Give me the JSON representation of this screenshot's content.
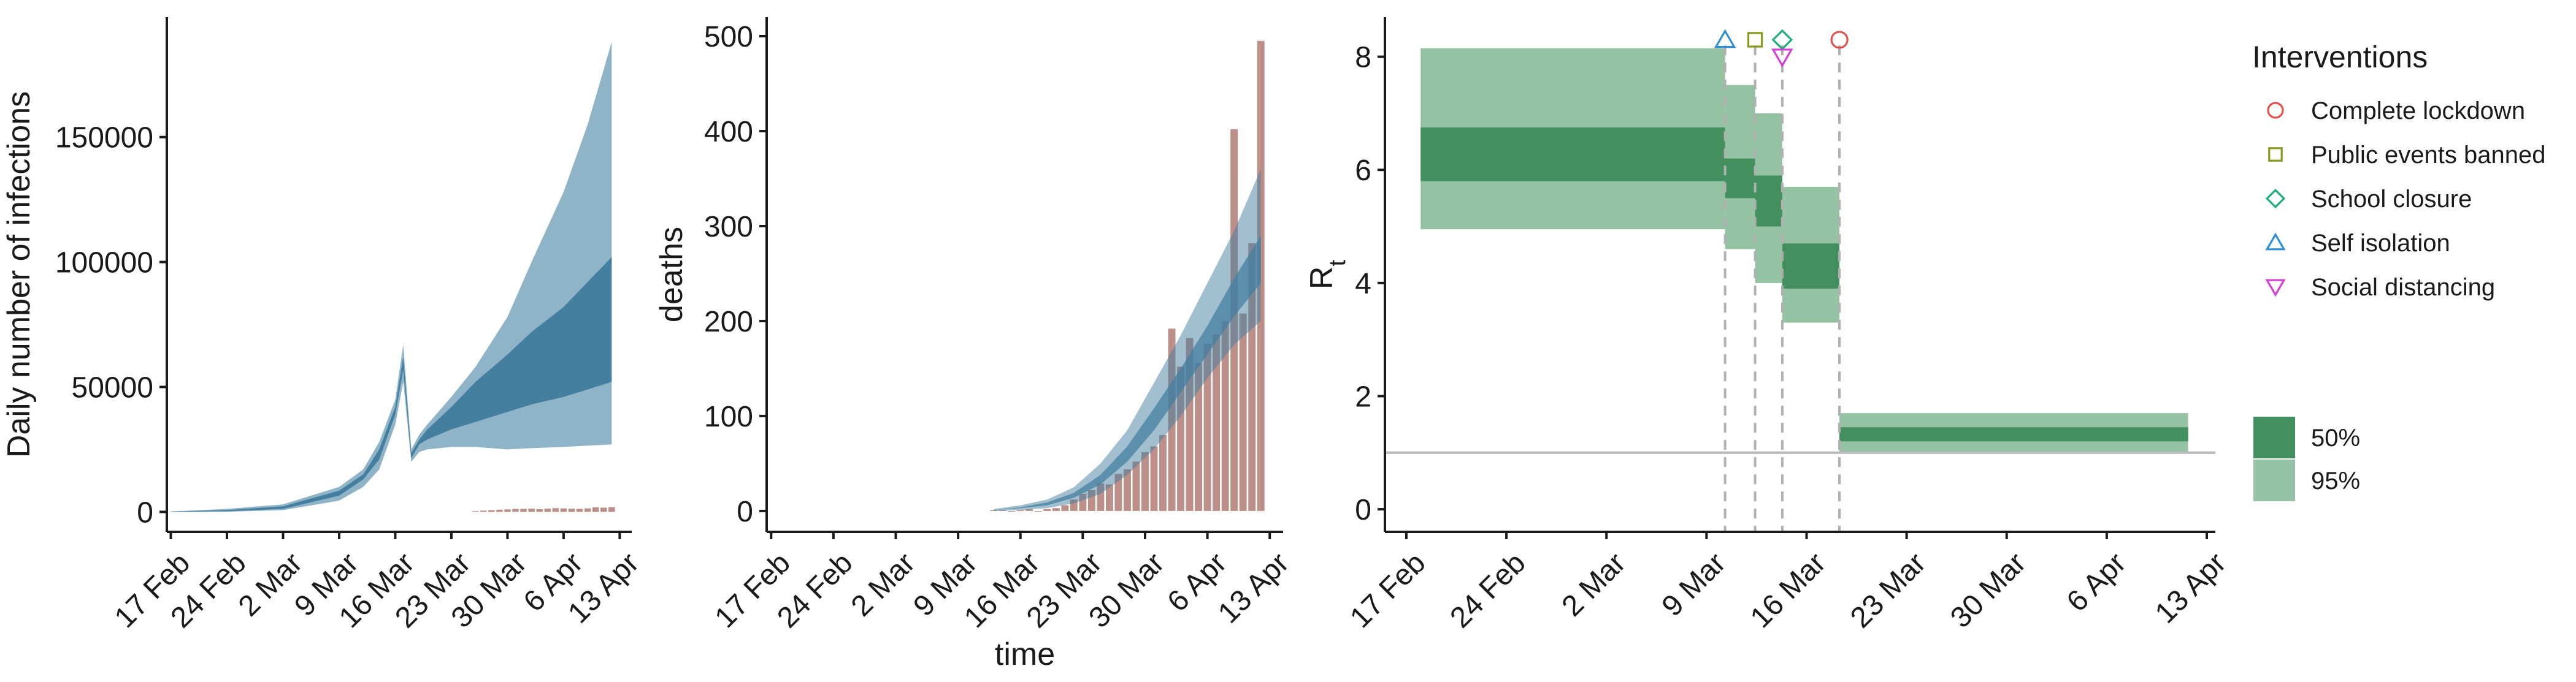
{
  "colors": {
    "band95_blue": "#8fb3c7",
    "band50_blue": "#447fa0",
    "bar_fill": "#bc8f89",
    "band95_green": "#94c2a2",
    "band50_green": "#438f5e",
    "axis": "#1a1a1a",
    "hline": "#b8b8b8",
    "vline": "#b0b0b0"
  },
  "chart_data": [
    {
      "type": "area",
      "ylabel": "Daily number of infections",
      "xlabel": "",
      "x_tick_labels": [
        "17 Feb",
        "24 Feb",
        "2 Mar",
        "9 Mar",
        "16 Mar",
        "23 Mar",
        "30 Mar",
        "6 Apr",
        "13 Apr"
      ],
      "x_tick_days": [
        0,
        7,
        14,
        21,
        28,
        35,
        42,
        49,
        56
      ],
      "y_ticks": [
        0,
        50000,
        100000,
        150000
      ],
      "xlim": [
        -0.5,
        57.5
      ],
      "ylim": [
        -8000,
        198000
      ],
      "band95": {
        "x": [
          0,
          7,
          14,
          21,
          24,
          26,
          28,
          29,
          30,
          31,
          32,
          35,
          38,
          42,
          45,
          49,
          52,
          55
        ],
        "lower": [
          0,
          50,
          700,
          4500,
          10000,
          17000,
          35000,
          52000,
          20000,
          24000,
          25000,
          26000,
          26000,
          25000,
          25500,
          26000,
          26500,
          27000
        ],
        "upper": [
          200,
          1200,
          3000,
          10000,
          17000,
          28000,
          45000,
          67000,
          25000,
          31000,
          35000,
          46000,
          58000,
          78000,
          100000,
          128000,
          155000,
          188000
        ]
      },
      "band50": {
        "x": [
          0,
          7,
          14,
          21,
          24,
          26,
          28,
          29,
          30,
          31,
          32,
          35,
          38,
          42,
          45,
          49,
          52,
          55
        ],
        "lower": [
          50,
          250,
          1200,
          6500,
          13000,
          21000,
          39000,
          57000,
          21500,
          27000,
          29000,
          33000,
          36000,
          40000,
          43000,
          46000,
          49000,
          52000
        ],
        "upper": [
          120,
          700,
          2200,
          8500,
          15000,
          25000,
          42000,
          62000,
          23500,
          29000,
          33000,
          42000,
          52000,
          63000,
          72000,
          82000,
          92000,
          102000
        ]
      },
      "bars": {
        "x": [
          38,
          39,
          40,
          41,
          42,
          43,
          44,
          45,
          46,
          47,
          48,
          49,
          50,
          51,
          52,
          53,
          54,
          55
        ],
        "values": [
          300,
          500,
          700,
          900,
          1000,
          1200,
          1200,
          1300,
          1100,
          1300,
          1500,
          1400,
          1300,
          1200,
          1400,
          1800,
          1700,
          1900
        ]
      }
    },
    {
      "type": "bar",
      "ylabel": "deaths",
      "xlabel": "time",
      "x_tick_labels": [
        "17 Feb",
        "24 Feb",
        "2 Mar",
        "9 Mar",
        "16 Mar",
        "23 Mar",
        "30 Mar",
        "6 Apr",
        "13 Apr"
      ],
      "x_tick_days": [
        0,
        7,
        14,
        21,
        28,
        35,
        42,
        49,
        56
      ],
      "y_ticks": [
        0,
        100,
        200,
        300,
        400,
        500
      ],
      "xlim": [
        -0.5,
        57.5
      ],
      "ylim": [
        -22,
        520
      ],
      "bars": {
        "x": [
          25,
          26,
          27,
          28,
          29,
          30,
          31,
          32,
          33,
          34,
          35,
          36,
          37,
          38,
          39,
          40,
          41,
          42,
          43,
          44,
          45,
          46,
          47,
          48,
          49,
          50,
          51,
          52,
          53,
          54,
          55
        ],
        "values": [
          1,
          1,
          0,
          1,
          2,
          0,
          2,
          3,
          6,
          12,
          18,
          22,
          29,
          28,
          39,
          44,
          52,
          62,
          68,
          80,
          192,
          152,
          182,
          156,
          176,
          186,
          200,
          402,
          208,
          282,
          495
        ]
      },
      "band95": {
        "x": [
          25,
          28,
          31,
          34,
          37,
          40,
          43,
          46,
          49,
          52,
          55
        ],
        "lower": [
          0,
          1,
          3,
          8,
          18,
          38,
          65,
          100,
          140,
          175,
          200
        ],
        "upper": [
          2,
          6,
          12,
          25,
          50,
          85,
          135,
          185,
          240,
          295,
          360
        ]
      },
      "band50": {
        "x": [
          25,
          28,
          31,
          34,
          37,
          40,
          43,
          46,
          49,
          52,
          55
        ],
        "lower": [
          1,
          3,
          6,
          14,
          28,
          52,
          85,
          125,
          165,
          205,
          240
        ],
        "upper": [
          1,
          4,
          9,
          19,
          38,
          68,
          108,
          150,
          195,
          245,
          290
        ]
      }
    },
    {
      "type": "area",
      "ylabel": "R",
      "ylabel_subscript": "t",
      "xlabel": "",
      "x_tick_labels": [
        "17 Feb",
        "24 Feb",
        "2 Mar",
        "9 Mar",
        "16 Mar",
        "23 Mar",
        "30 Mar",
        "6 Apr",
        "13 Apr"
      ],
      "x_tick_days": [
        0,
        7,
        14,
        21,
        28,
        35,
        42,
        49,
        56
      ],
      "y_ticks": [
        0,
        2,
        4,
        6,
        8
      ],
      "xlim": [
        -1.5,
        56.6
      ],
      "ylim": [
        -0.4,
        8.7
      ],
      "steps": [
        {
          "x0": 1,
          "x1": 22.3,
          "lo95": 4.95,
          "hi95": 8.15,
          "lo50": 5.8,
          "hi50": 6.75
        },
        {
          "x0": 22.3,
          "x1": 24.4,
          "lo95": 4.6,
          "hi95": 7.5,
          "lo50": 5.5,
          "hi50": 6.2
        },
        {
          "x0": 24.4,
          "x1": 26.3,
          "lo95": 4.0,
          "hi95": 7.0,
          "lo50": 5.0,
          "hi50": 5.9
        },
        {
          "x0": 26.3,
          "x1": 30.3,
          "lo95": 3.3,
          "hi95": 5.7,
          "lo50": 3.9,
          "hi50": 4.7
        },
        {
          "x0": 30.3,
          "x1": 54.7,
          "lo95": 1.0,
          "hi95": 1.7,
          "lo50": 1.2,
          "hi50": 1.45
        }
      ],
      "reference_line": 1,
      "intervention_lines": [
        22.3,
        24.4,
        26.3,
        30.3
      ],
      "markers": [
        {
          "name": "Self isolation",
          "symbol": "triangle-up",
          "color": "#2e8fd8",
          "x": 22.3,
          "y": 8.3
        },
        {
          "name": "Public events banned",
          "symbol": "square",
          "color": "#8a9a1e",
          "x": 24.4,
          "y": 8.3
        },
        {
          "name": "School closure",
          "symbol": "diamond",
          "color": "#1fae7a",
          "x": 26.3,
          "y": 8.3
        },
        {
          "name": "Social distancing",
          "symbol": "triangle-down",
          "color": "#d43fd4",
          "x": 26.3,
          "y": 8.0
        },
        {
          "name": "Complete lockdown",
          "symbol": "circle",
          "color": "#e0524e",
          "x": 30.3,
          "y": 8.3
        }
      ]
    }
  ],
  "legend": {
    "title": "Interventions",
    "items": [
      {
        "label": "Complete lockdown",
        "symbol": "circle",
        "color": "#e0524e"
      },
      {
        "label": "Public events banned",
        "symbol": "square",
        "color": "#8a9a1e"
      },
      {
        "label": "School closure",
        "symbol": "diamond",
        "color": "#1fae7a"
      },
      {
        "label": "Self isolation",
        "symbol": "triangle-up",
        "color": "#2e8fd8"
      },
      {
        "label": "Social distancing",
        "symbol": "triangle-down",
        "color": "#d43fd4"
      }
    ],
    "bands": [
      {
        "label": "50%",
        "color": "#438f5e"
      },
      {
        "label": "95%",
        "color": "#94c2a2"
      }
    ]
  }
}
